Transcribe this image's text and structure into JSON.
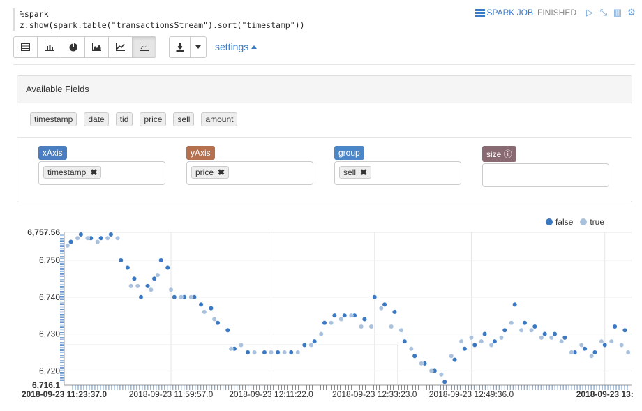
{
  "code": {
    "line1": "%spark",
    "line2": "z.show(spark.table(\"transactionsStream\").sort(\"timestamp\"))"
  },
  "header": {
    "job_label": "SPARK JOB",
    "status": "FINISHED"
  },
  "toolbar": {
    "buttons": [
      "table-icon",
      "bar-chart-icon",
      "pie-chart-icon",
      "area-chart-icon",
      "line-chart-icon",
      "scatter-chart-icon"
    ],
    "active": "scatter-chart-icon",
    "settings_label": "settings"
  },
  "panel": {
    "title": "Available Fields",
    "fields": [
      "timestamp",
      "date",
      "tid",
      "price",
      "sell",
      "amount"
    ],
    "axes": [
      {
        "label": "xAxis",
        "color": "#4a7ec0",
        "value": "timestamp"
      },
      {
        "label": "yAxis",
        "color": "#b5704f",
        "value": "price"
      },
      {
        "label": "group",
        "color": "#4a86c8",
        "value": "sell"
      },
      {
        "label": "size",
        "color": "#8a6a72",
        "value": ""
      }
    ]
  },
  "colors": {
    "false_series": "#3a78c2",
    "true_series": "#a9c1dd",
    "accent": "#3a7bc8"
  },
  "chart_data": {
    "type": "scatter",
    "legend": [
      {
        "name": "false"
      },
      {
        "name": "true"
      }
    ],
    "ylim": [
      6716.1,
      6757.56
    ],
    "y_ticks": [
      "6,757.56",
      "6,750",
      "6,740",
      "6,730",
      "6,720",
      "6,716.1"
    ],
    "x_ticks": [
      "2018-09-23 11:23:37.0",
      "2018-09-23 11:59:57.0",
      "2018-09-23 12:11:22.0",
      "2018-09-23 12:33:23.0",
      "2018-09-23 12:49:36.0",
      "2018-09-23 13:"
    ],
    "series": [
      {
        "name": "false",
        "points": [
          [
            0.02,
            6755
          ],
          [
            0.05,
            6757
          ],
          [
            0.08,
            6756
          ],
          [
            0.11,
            6756
          ],
          [
            0.14,
            6757
          ],
          [
            0.17,
            6750
          ],
          [
            0.19,
            6748
          ],
          [
            0.21,
            6745
          ],
          [
            0.23,
            6740
          ],
          [
            0.25,
            6743
          ],
          [
            0.27,
            6745
          ],
          [
            0.29,
            6750
          ],
          [
            0.31,
            6748
          ],
          [
            0.33,
            6740
          ],
          [
            0.36,
            6740
          ],
          [
            0.39,
            6740
          ],
          [
            0.41,
            6738
          ],
          [
            0.44,
            6737
          ],
          [
            0.46,
            6733
          ],
          [
            0.49,
            6731
          ],
          [
            0.51,
            6726
          ],
          [
            0.55,
            6725
          ],
          [
            0.6,
            6725
          ],
          [
            0.64,
            6725
          ],
          [
            0.68,
            6725
          ],
          [
            0.72,
            6727
          ],
          [
            0.75,
            6728
          ],
          [
            0.78,
            6733
          ],
          [
            0.81,
            6735
          ],
          [
            0.84,
            6735
          ],
          [
            0.87,
            6735
          ],
          [
            0.9,
            6734
          ],
          [
            0.93,
            6740
          ],
          [
            0.96,
            6738
          ],
          [
            0.99,
            6736
          ],
          [
            1.02,
            6728
          ],
          [
            1.05,
            6724
          ],
          [
            1.08,
            6722
          ],
          [
            1.11,
            6720
          ],
          [
            1.14,
            6717
          ],
          [
            1.17,
            6723
          ],
          [
            1.2,
            6726
          ],
          [
            1.23,
            6727
          ],
          [
            1.26,
            6730
          ],
          [
            1.29,
            6728
          ],
          [
            1.32,
            6731
          ],
          [
            1.35,
            6738
          ],
          [
            1.38,
            6733
          ],
          [
            1.41,
            6732
          ],
          [
            1.44,
            6730
          ],
          [
            1.47,
            6730
          ],
          [
            1.5,
            6729
          ],
          [
            1.53,
            6725
          ],
          [
            1.56,
            6726
          ],
          [
            1.59,
            6725
          ],
          [
            1.62,
            6727
          ],
          [
            1.65,
            6732
          ],
          [
            1.68,
            6731
          ]
        ]
      },
      {
        "name": "true",
        "points": [
          [
            0.01,
            6754
          ],
          [
            0.04,
            6756
          ],
          [
            0.07,
            6756
          ],
          [
            0.1,
            6755
          ],
          [
            0.13,
            6756
          ],
          [
            0.16,
            6756
          ],
          [
            0.2,
            6743
          ],
          [
            0.22,
            6743
          ],
          [
            0.26,
            6742
          ],
          [
            0.28,
            6746
          ],
          [
            0.32,
            6742
          ],
          [
            0.35,
            6740
          ],
          [
            0.38,
            6740
          ],
          [
            0.42,
            6736
          ],
          [
            0.45,
            6734
          ],
          [
            0.5,
            6726
          ],
          [
            0.53,
            6727
          ],
          [
            0.57,
            6725
          ],
          [
            0.62,
            6725
          ],
          [
            0.66,
            6725
          ],
          [
            0.7,
            6725
          ],
          [
            0.74,
            6727
          ],
          [
            0.77,
            6730
          ],
          [
            0.8,
            6733
          ],
          [
            0.83,
            6734
          ],
          [
            0.86,
            6735
          ],
          [
            0.89,
            6732
          ],
          [
            0.92,
            6732
          ],
          [
            0.95,
            6737
          ],
          [
            0.98,
            6732
          ],
          [
            1.01,
            6731
          ],
          [
            1.04,
            6726
          ],
          [
            1.07,
            6722
          ],
          [
            1.1,
            6720
          ],
          [
            1.13,
            6719
          ],
          [
            1.16,
            6724
          ],
          [
            1.19,
            6728
          ],
          [
            1.22,
            6729
          ],
          [
            1.25,
            6728
          ],
          [
            1.28,
            6727
          ],
          [
            1.31,
            6729
          ],
          [
            1.34,
            6733
          ],
          [
            1.37,
            6731
          ],
          [
            1.4,
            6731
          ],
          [
            1.43,
            6729
          ],
          [
            1.46,
            6729
          ],
          [
            1.49,
            6728
          ],
          [
            1.52,
            6725
          ],
          [
            1.55,
            6727
          ],
          [
            1.58,
            6724
          ],
          [
            1.61,
            6728
          ],
          [
            1.64,
            6728
          ],
          [
            1.67,
            6727
          ],
          [
            1.69,
            6725
          ]
        ]
      }
    ]
  }
}
